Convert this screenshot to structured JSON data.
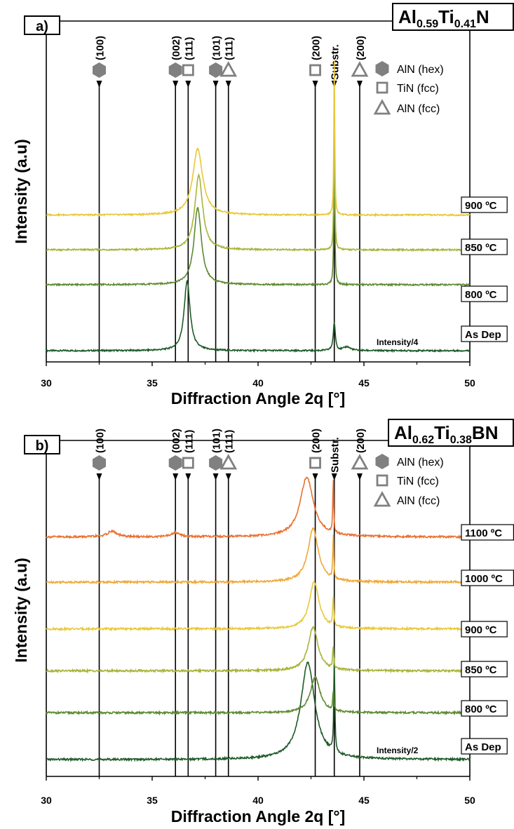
{
  "chart_data": [
    {
      "type": "line",
      "panel": "a)",
      "title_parts": [
        {
          "t": "Al",
          "sub": false
        },
        {
          "t": "0.59",
          "sub": true
        },
        {
          "t": "Ti",
          "sub": false
        },
        {
          "t": "0.41",
          "sub": true
        },
        {
          "t": "N",
          "sub": false
        }
      ],
      "xlabel": "Diffraction Angle 2q [°]",
      "ylabel": "Intensity (a.u)",
      "xlim": [
        30,
        50
      ],
      "xticks": [
        30,
        35,
        40,
        45,
        50
      ],
      "grid": false,
      "legend_position": "top-right",
      "legend": [
        {
          "marker": "hexagon",
          "label": "AlN (hex)"
        },
        {
          "marker": "square",
          "label": "TiN (fcc)"
        },
        {
          "marker": "triangle",
          "label": "AlN (fcc)"
        }
      ],
      "reference_lines": [
        {
          "x": 32.5,
          "marker": "hexagon",
          "label": "(100)"
        },
        {
          "x": 36.1,
          "marker": "hexagon",
          "label": "(002)"
        },
        {
          "x": 36.7,
          "marker": "square",
          "label": "(111)"
        },
        {
          "x": 38.0,
          "marker": "hexagon",
          "label": "(101)"
        },
        {
          "x": 38.6,
          "marker": "triangle",
          "label": "(111)"
        },
        {
          "x": 42.7,
          "marker": "square",
          "label": "(200)"
        },
        {
          "x": 43.6,
          "marker": "none",
          "label": "Substr."
        },
        {
          "x": 44.8,
          "marker": "triangle",
          "label": "(200)"
        }
      ],
      "annotation": "Intensity/4",
      "series": [
        {
          "name": "As Dep",
          "color": "#1e5a28",
          "offset": 0.0,
          "peaks": [
            {
              "x": 36.65,
              "h": 0.28,
              "w": 0.17
            },
            {
              "x": 43.6,
              "h": 0.11,
              "w": 0.06
            },
            {
              "x": 44.2,
              "h": 0.015,
              "w": 0.2
            }
          ]
        },
        {
          "name": "800 ºC",
          "color": "#5c8a30",
          "offset": 0.265,
          "peaks": [
            {
              "x": 37.15,
              "h": 0.31,
              "w": 0.21
            },
            {
              "x": 43.6,
              "h": 0.64,
              "w": 0.025
            }
          ]
        },
        {
          "name": "850 ºC",
          "color": "#a8b43a",
          "offset": 0.405,
          "peaks": [
            {
              "x": 37.2,
              "h": 0.3,
              "w": 0.22
            },
            {
              "x": 43.6,
              "h": 0.64,
              "w": 0.025
            }
          ]
        },
        {
          "name": "900 ºC",
          "color": "#e8c838",
          "offset": 0.545,
          "peaks": [
            {
              "x": 37.15,
              "h": 0.265,
              "w": 0.28
            },
            {
              "x": 43.6,
              "h": 0.62,
              "w": 0.025
            }
          ]
        }
      ]
    },
    {
      "type": "line",
      "panel": "b)",
      "title_parts": [
        {
          "t": "Al",
          "sub": false
        },
        {
          "t": "0.62",
          "sub": true
        },
        {
          "t": "Ti",
          "sub": false
        },
        {
          "t": "0.38",
          "sub": true
        },
        {
          "t": "BN",
          "sub": false
        }
      ],
      "xlabel": "Diffraction Angle 2q [°]",
      "ylabel": "Intensity (a.u)",
      "xlim": [
        30,
        50
      ],
      "xticks": [
        30,
        35,
        40,
        45,
        50
      ],
      "grid": false,
      "legend_position": "top-right",
      "legend": [
        {
          "marker": "hexagon",
          "label": "AlN (hex)"
        },
        {
          "marker": "square",
          "label": "TiN (fcc)"
        },
        {
          "marker": "triangle",
          "label": "AlN (fcc)"
        }
      ],
      "reference_lines": [
        {
          "x": 32.5,
          "marker": "hexagon",
          "label": "(100)"
        },
        {
          "x": 36.1,
          "marker": "hexagon",
          "label": "(002)"
        },
        {
          "x": 36.7,
          "marker": "square",
          "label": "(111)"
        },
        {
          "x": 38.0,
          "marker": "hexagon",
          "label": "(101)"
        },
        {
          "x": 38.6,
          "marker": "triangle",
          "label": "(111)"
        },
        {
          "x": 42.7,
          "marker": "square",
          "label": "(200)"
        },
        {
          "x": 43.6,
          "marker": "none",
          "label": "Substr."
        },
        {
          "x": 44.8,
          "marker": "triangle",
          "label": "(200)"
        }
      ],
      "annotation": "Intensity/2",
      "series": [
        {
          "name": "As Dep",
          "color": "#1e5a28",
          "offset": 0.0,
          "peaks": [
            {
              "x": 42.35,
              "h": 0.3,
              "w": 0.4
            },
            {
              "x": 43.6,
              "h": 0.29,
              "w": 0.03
            }
          ]
        },
        {
          "name": "800 ºC",
          "color": "#5c8a30",
          "offset": 0.145,
          "peaks": [
            {
              "x": 42.7,
              "h": 0.11,
              "w": 0.28
            },
            {
              "x": 43.55,
              "h": 0.06,
              "w": 0.03
            }
          ]
        },
        {
          "name": "850 ºC",
          "color": "#a8b43a",
          "offset": 0.275,
          "peaks": [
            {
              "x": 42.6,
              "h": 0.135,
              "w": 0.28
            },
            {
              "x": 43.55,
              "h": 0.07,
              "w": 0.03
            }
          ]
        },
        {
          "name": "900 ºC",
          "color": "#e8c838",
          "offset": 0.405,
          "peaks": [
            {
              "x": 42.65,
              "h": 0.145,
              "w": 0.28
            },
            {
              "x": 43.55,
              "h": 0.09,
              "w": 0.03
            }
          ]
        },
        {
          "name": "1000 ºC",
          "color": "#f0a838",
          "offset": 0.55,
          "peaks": [
            {
              "x": 42.6,
              "h": 0.165,
              "w": 0.3
            },
            {
              "x": 43.55,
              "h": 0.14,
              "w": 0.025
            }
          ]
        },
        {
          "name": "1100 ºC",
          "color": "#ea7030",
          "offset": 0.69,
          "peaks": [
            {
              "x": 42.3,
              "h": 0.185,
              "w": 0.38
            },
            {
              "x": 43.55,
              "h": 0.17,
              "w": 0.025
            },
            {
              "x": 33.1,
              "h": 0.018,
              "w": 0.25
            },
            {
              "x": 36.1,
              "h": 0.012,
              "w": 0.25
            }
          ]
        }
      ]
    }
  ]
}
